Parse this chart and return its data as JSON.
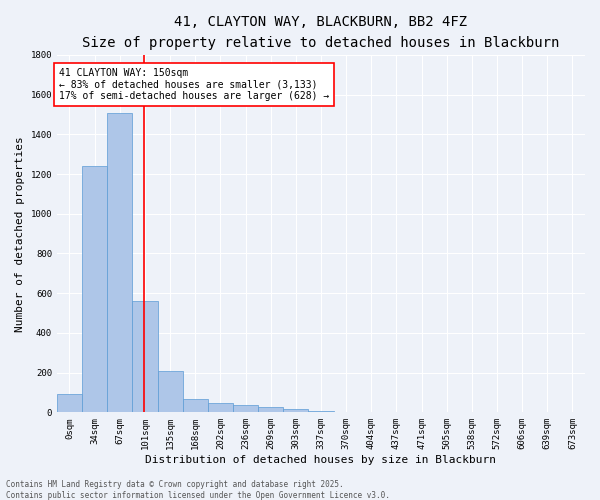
{
  "title": "41, CLAYTON WAY, BLACKBURN, BB2 4FZ",
  "subtitle": "Size of property relative to detached houses in Blackburn",
  "xlabel": "Distribution of detached houses by size in Blackburn",
  "ylabel": "Number of detached properties",
  "footnote1": "Contains HM Land Registry data © Crown copyright and database right 2025.",
  "footnote2": "Contains public sector information licensed under the Open Government Licence v3.0.",
  "bar_labels": [
    "0sqm",
    "34sqm",
    "67sqm",
    "101sqm",
    "135sqm",
    "168sqm",
    "202sqm",
    "236sqm",
    "269sqm",
    "303sqm",
    "337sqm",
    "370sqm",
    "404sqm",
    "437sqm",
    "471sqm",
    "505sqm",
    "538sqm",
    "572sqm",
    "606sqm",
    "639sqm",
    "673sqm"
  ],
  "bar_values": [
    90,
    1240,
    1510,
    560,
    210,
    65,
    48,
    38,
    28,
    18,
    8,
    0,
    0,
    0,
    0,
    0,
    0,
    0,
    0,
    0,
    0
  ],
  "bar_color": "#aec6e8",
  "bar_edgecolor": "#5b9bd5",
  "vline_x": 3.45,
  "vline_color": "red",
  "annotation_text": "41 CLAYTON WAY: 150sqm\n← 83% of detached houses are smaller (3,133)\n17% of semi-detached houses are larger (628) →",
  "annotation_box_color": "red",
  "ylim": [
    0,
    1800
  ],
  "yticks": [
    0,
    200,
    400,
    600,
    800,
    1000,
    1200,
    1400,
    1600,
    1800
  ],
  "bg_color": "#eef2f9",
  "plot_bg_color": "#eef2f9",
  "grid_color": "white",
  "title_fontsize": 10,
  "subtitle_fontsize": 9,
  "xlabel_fontsize": 8,
  "ylabel_fontsize": 8,
  "tick_fontsize": 6.5,
  "annotation_fontsize": 7,
  "footnote_fontsize": 5.5
}
